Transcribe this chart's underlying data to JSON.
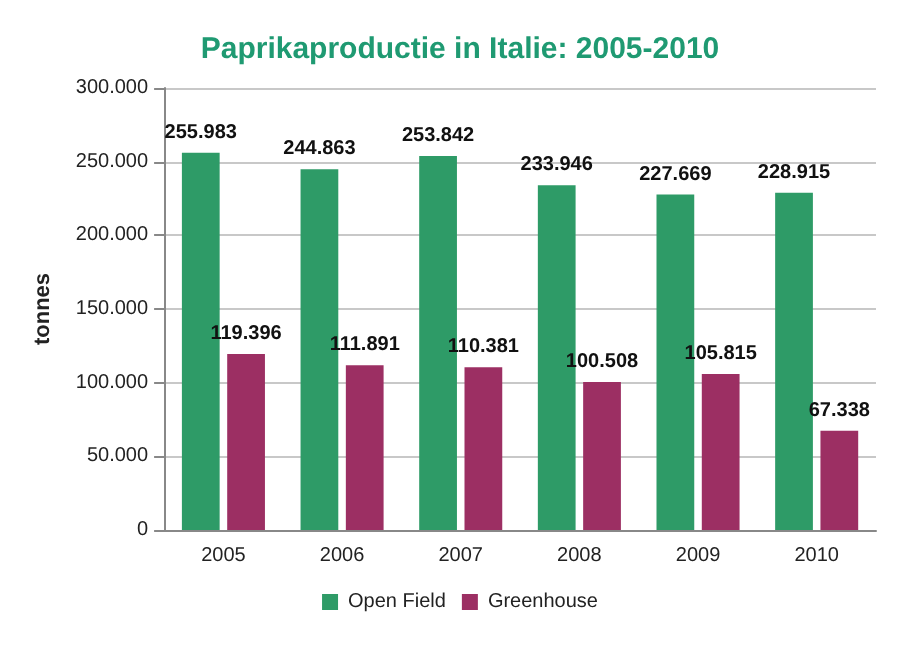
{
  "chart_data": {
    "type": "bar",
    "title": "Paprikaproductie in Italie: 2005-2010",
    "ylabel": "tonnes",
    "categories": [
      "2005",
      "2006",
      "2007",
      "2008",
      "2009",
      "2010"
    ],
    "series": [
      {
        "name": "Open Field",
        "color": "#2e9b67",
        "values": [
          255983,
          244863,
          253842,
          233946,
          227669,
          228915
        ],
        "value_labels": [
          "255.983",
          "244.863",
          "253.842",
          "233.946",
          "227.669",
          "228.915"
        ]
      },
      {
        "name": "Greenhouse",
        "color": "#9c2f63",
        "values": [
          119396,
          111891,
          110381,
          100508,
          105815,
          67338
        ],
        "value_labels": [
          "119.396",
          "111.891",
          "110.381",
          "100.508",
          "105.815",
          "67.338"
        ]
      }
    ],
    "ylim": [
      0,
      300000
    ],
    "yticks": [
      {
        "value": 0,
        "label": "0"
      },
      {
        "value": 50000,
        "label": "50.000"
      },
      {
        "value": 100000,
        "label": "100.000"
      },
      {
        "value": 150000,
        "label": "150.000"
      },
      {
        "value": 200000,
        "label": "200.000"
      },
      {
        "value": 250000,
        "label": "250.000"
      },
      {
        "value": 300000,
        "label": "300.000"
      }
    ],
    "grid": "y",
    "legend": "bottom"
  }
}
